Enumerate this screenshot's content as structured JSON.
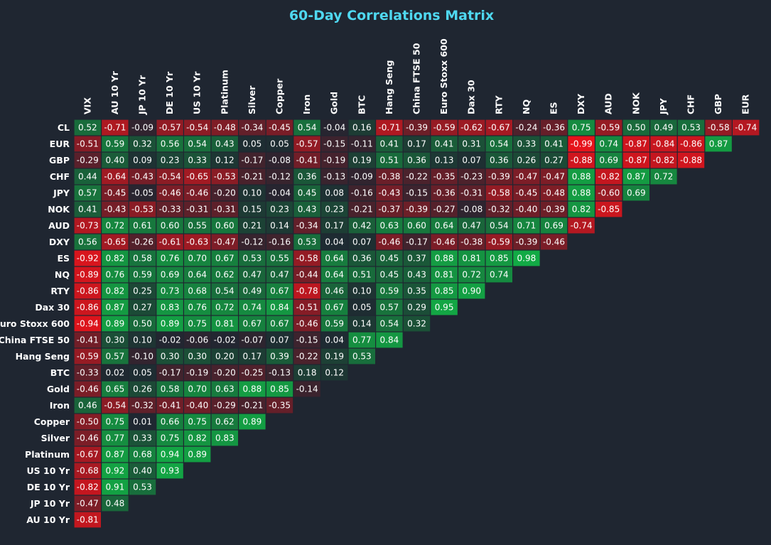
{
  "chart_data": {
    "type": "heatmap",
    "title": "60-Day Correlations Matrix",
    "color_scale": {
      "negative": "#e8131b",
      "neutral": "#1f2631",
      "positive": "#12ad45",
      "range": [
        -1,
        1
      ]
    },
    "columns": [
      "VIX",
      "AU 10 Yr",
      "JP 10 Yr",
      "DE 10 Yr",
      "US 10 Yr",
      "Platinum",
      "Silver",
      "Copper",
      "Iron",
      "Gold",
      "BTC",
      "Hang Seng",
      "China FTSE 50",
      "Euro Stoxx 600",
      "Dax 30",
      "RTY",
      "NQ",
      "ES",
      "DXY",
      "AUD",
      "NOK",
      "JPY",
      "CHF",
      "GBP",
      "EUR"
    ],
    "rows": [
      {
        "label": "CL",
        "values": [
          0.52,
          -0.71,
          -0.09,
          -0.57,
          -0.54,
          -0.48,
          -0.34,
          -0.45,
          0.54,
          -0.04,
          0.16,
          -0.71,
          -0.39,
          -0.59,
          -0.62,
          -0.67,
          -0.24,
          -0.36,
          0.75,
          -0.59,
          0.5,
          0.49,
          0.53,
          -0.58,
          -0.74
        ]
      },
      {
        "label": "EUR",
        "values": [
          -0.51,
          0.59,
          0.32,
          0.56,
          0.54,
          0.43,
          0.05,
          0.05,
          -0.57,
          -0.15,
          -0.11,
          0.41,
          0.17,
          0.41,
          0.31,
          0.54,
          0.33,
          0.41,
          -0.99,
          0.74,
          -0.87,
          -0.84,
          -0.86,
          0.87
        ]
      },
      {
        "label": "GBP",
        "values": [
          -0.29,
          0.4,
          0.09,
          0.23,
          0.33,
          0.12,
          -0.17,
          -0.08,
          -0.41,
          -0.19,
          0.19,
          0.51,
          0.36,
          0.13,
          0.07,
          0.36,
          0.26,
          0.27,
          -0.88,
          0.69,
          -0.87,
          -0.82,
          -0.88
        ]
      },
      {
        "label": "CHF",
        "values": [
          0.44,
          -0.64,
          -0.43,
          -0.54,
          -0.65,
          -0.53,
          -0.21,
          -0.12,
          0.36,
          -0.13,
          -0.09,
          -0.38,
          -0.22,
          -0.35,
          -0.23,
          -0.39,
          -0.47,
          -0.47,
          0.88,
          -0.82,
          0.87,
          0.72
        ]
      },
      {
        "label": "JPY",
        "values": [
          0.57,
          -0.45,
          -0.05,
          -0.46,
          -0.46,
          -0.2,
          0.1,
          -0.04,
          0.45,
          0.08,
          -0.16,
          -0.43,
          -0.15,
          -0.36,
          -0.31,
          -0.58,
          -0.45,
          -0.48,
          0.88,
          -0.6,
          0.69
        ]
      },
      {
        "label": "NOK",
        "values": [
          0.41,
          -0.43,
          -0.53,
          -0.33,
          -0.31,
          -0.31,
          0.15,
          0.23,
          0.43,
          0.23,
          -0.21,
          -0.37,
          -0.39,
          -0.27,
          -0.08,
          -0.32,
          -0.4,
          -0.39,
          0.82,
          -0.85
        ]
      },
      {
        "label": "AUD",
        "values": [
          -0.73,
          0.72,
          0.61,
          0.6,
          0.55,
          0.6,
          0.21,
          0.14,
          -0.34,
          0.17,
          0.42,
          0.63,
          0.6,
          0.64,
          0.47,
          0.54,
          0.71,
          0.69,
          -0.74
        ]
      },
      {
        "label": "DXY",
        "values": [
          0.56,
          -0.65,
          -0.26,
          -0.61,
          -0.63,
          -0.47,
          -0.12,
          -0.16,
          0.53,
          0.04,
          0.07,
          -0.46,
          -0.17,
          -0.46,
          -0.38,
          -0.59,
          -0.39,
          -0.46
        ]
      },
      {
        "label": "ES",
        "values": [
          -0.92,
          0.82,
          0.58,
          0.76,
          0.7,
          0.67,
          0.53,
          0.55,
          -0.58,
          0.64,
          0.36,
          0.45,
          0.37,
          0.88,
          0.81,
          0.85,
          0.98
        ]
      },
      {
        "label": "NQ",
        "values": [
          -0.89,
          0.76,
          0.59,
          0.69,
          0.64,
          0.62,
          0.47,
          0.47,
          -0.44,
          0.64,
          0.51,
          0.45,
          0.43,
          0.81,
          0.72,
          0.74
        ]
      },
      {
        "label": "RTY",
        "values": [
          -0.86,
          0.82,
          0.25,
          0.73,
          0.68,
          0.54,
          0.49,
          0.67,
          -0.78,
          0.46,
          0.1,
          0.59,
          0.35,
          0.85,
          0.9
        ]
      },
      {
        "label": "Dax 30",
        "values": [
          -0.86,
          0.87,
          0.27,
          0.83,
          0.76,
          0.72,
          0.74,
          0.84,
          -0.51,
          0.67,
          0.05,
          0.57,
          0.29,
          0.95
        ]
      },
      {
        "label": "Euro Stoxx 600",
        "values": [
          -0.94,
          0.89,
          0.5,
          0.89,
          0.75,
          0.81,
          0.67,
          0.67,
          -0.46,
          0.59,
          0.14,
          0.54,
          0.32
        ]
      },
      {
        "label": "China FTSE 50",
        "values": [
          -0.41,
          0.3,
          0.1,
          -0.02,
          -0.06,
          -0.02,
          -0.07,
          0.07,
          -0.15,
          0.04,
          0.77,
          0.84
        ]
      },
      {
        "label": "Hang Seng",
        "values": [
          -0.59,
          0.57,
          -0.1,
          0.3,
          0.3,
          0.2,
          0.17,
          0.39,
          -0.22,
          0.19,
          0.53
        ]
      },
      {
        "label": "BTC",
        "values": [
          -0.33,
          0.02,
          0.05,
          -0.17,
          -0.19,
          -0.2,
          -0.25,
          -0.13,
          0.18,
          0.12
        ]
      },
      {
        "label": "Gold",
        "values": [
          -0.46,
          0.65,
          0.26,
          0.58,
          0.7,
          0.63,
          0.88,
          0.85,
          -0.14
        ]
      },
      {
        "label": "Iron",
        "values": [
          0.46,
          -0.54,
          -0.32,
          -0.41,
          -0.4,
          -0.29,
          -0.21,
          -0.35
        ]
      },
      {
        "label": "Copper",
        "values": [
          -0.5,
          0.75,
          0.01,
          0.66,
          0.75,
          0.62,
          0.89
        ]
      },
      {
        "label": "Silver",
        "values": [
          -0.46,
          0.77,
          0.33,
          0.75,
          0.82,
          0.83
        ]
      },
      {
        "label": "Platinum",
        "values": [
          -0.67,
          0.87,
          0.68,
          0.94,
          0.89
        ]
      },
      {
        "label": "US 10 Yr",
        "values": [
          -0.68,
          0.92,
          0.4,
          0.93
        ]
      },
      {
        "label": "DE 10 Yr",
        "values": [
          -0.82,
          0.91,
          0.53
        ]
      },
      {
        "label": "JP 10 Yr",
        "values": [
          -0.47,
          0.48
        ]
      },
      {
        "label": "AU 10 Yr",
        "values": [
          -0.81
        ]
      }
    ]
  }
}
